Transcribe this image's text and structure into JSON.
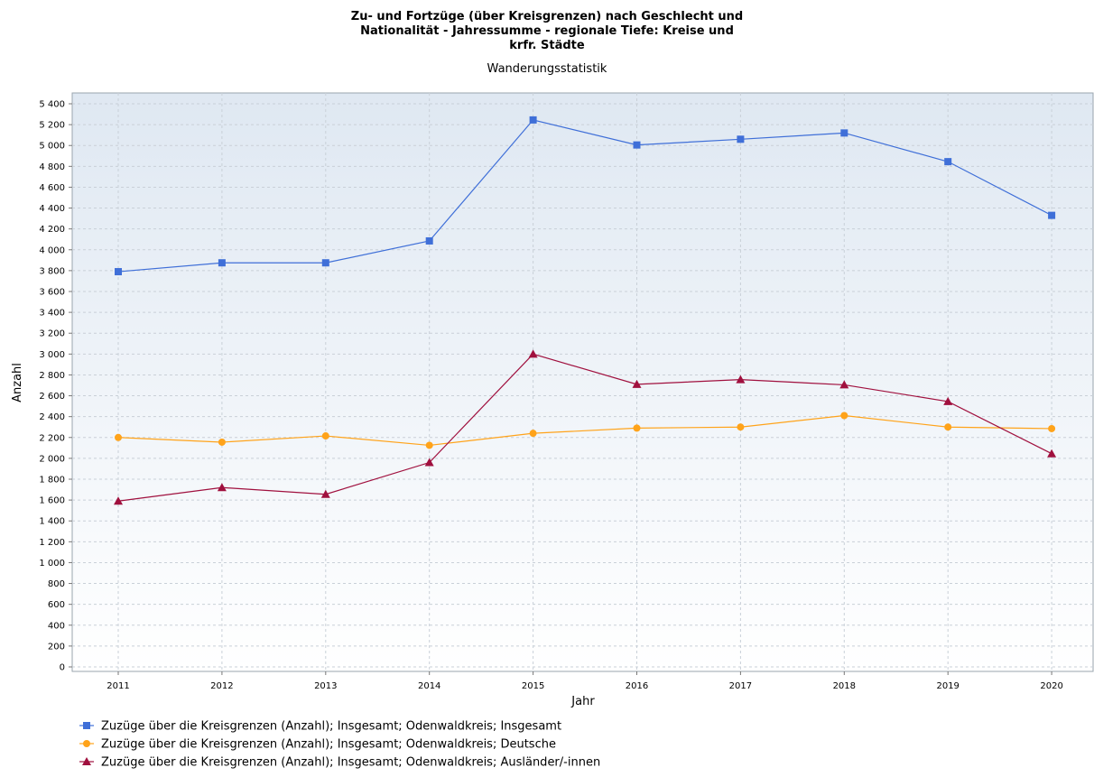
{
  "chart_data": {
    "type": "line",
    "title_lines": [
      "Zu- und Fortzüge (über Kreisgrenzen) nach Geschlecht und",
      "Nationalität - Jahressumme - regionale Tiefe: Kreise und",
      "krfr. Städte"
    ],
    "subtitle": "Wanderungsstatistik",
    "xlabel": "Jahr",
    "ylabel": "Anzahl",
    "ylim": [
      0,
      5500
    ],
    "yticks": [
      0,
      200,
      400,
      600,
      800,
      1000,
      1200,
      1400,
      1600,
      1800,
      2000,
      2200,
      2400,
      2600,
      2800,
      3000,
      3200,
      3400,
      3600,
      3800,
      4000,
      4200,
      4400,
      4600,
      4800,
      5000,
      5200,
      5400
    ],
    "ytick_labels": [
      "0",
      "200",
      "400",
      "600",
      "800",
      "1 000",
      "1 200",
      "1 400",
      "1 600",
      "1 800",
      "2 000",
      "2 200",
      "2 400",
      "2 600",
      "2 800",
      "3 000",
      "3 200",
      "3 400",
      "3 600",
      "3 800",
      "4 000",
      "4 200",
      "4 400",
      "4 600",
      "4 800",
      "5 000",
      "5 200",
      "5 400"
    ],
    "categories": [
      "2011",
      "2012",
      "2013",
      "2014",
      "2015",
      "2016",
      "2017",
      "2018",
      "2019",
      "2020"
    ],
    "grid": true,
    "legend_position": "bottom",
    "series": [
      {
        "name": "Zuzüge über die Kreisgrenzen (Anzahl); Insgesamt; Odenwaldkreis; Insgesamt",
        "color": "#3f6fd8",
        "marker": "square",
        "values": [
          3790,
          3875,
          3875,
          4085,
          5245,
          5005,
          5060,
          5120,
          4845,
          4330
        ]
      },
      {
        "name": "Zuzüge über die Kreisgrenzen (Anzahl); Insgesamt; Odenwaldkreis; Deutsche",
        "color": "#ffa31a",
        "marker": "circle",
        "values": [
          2200,
          2155,
          2215,
          2125,
          2240,
          2290,
          2300,
          2410,
          2300,
          2285
        ]
      },
      {
        "name": "Zuzüge über die Kreisgrenzen (Anzahl); Insgesamt; Odenwaldkreis; Ausländer/-innen",
        "color": "#a0103e",
        "marker": "triangle",
        "values": [
          1590,
          1720,
          1655,
          1960,
          3000,
          2710,
          2755,
          2705,
          2545,
          2045
        ]
      }
    ]
  }
}
